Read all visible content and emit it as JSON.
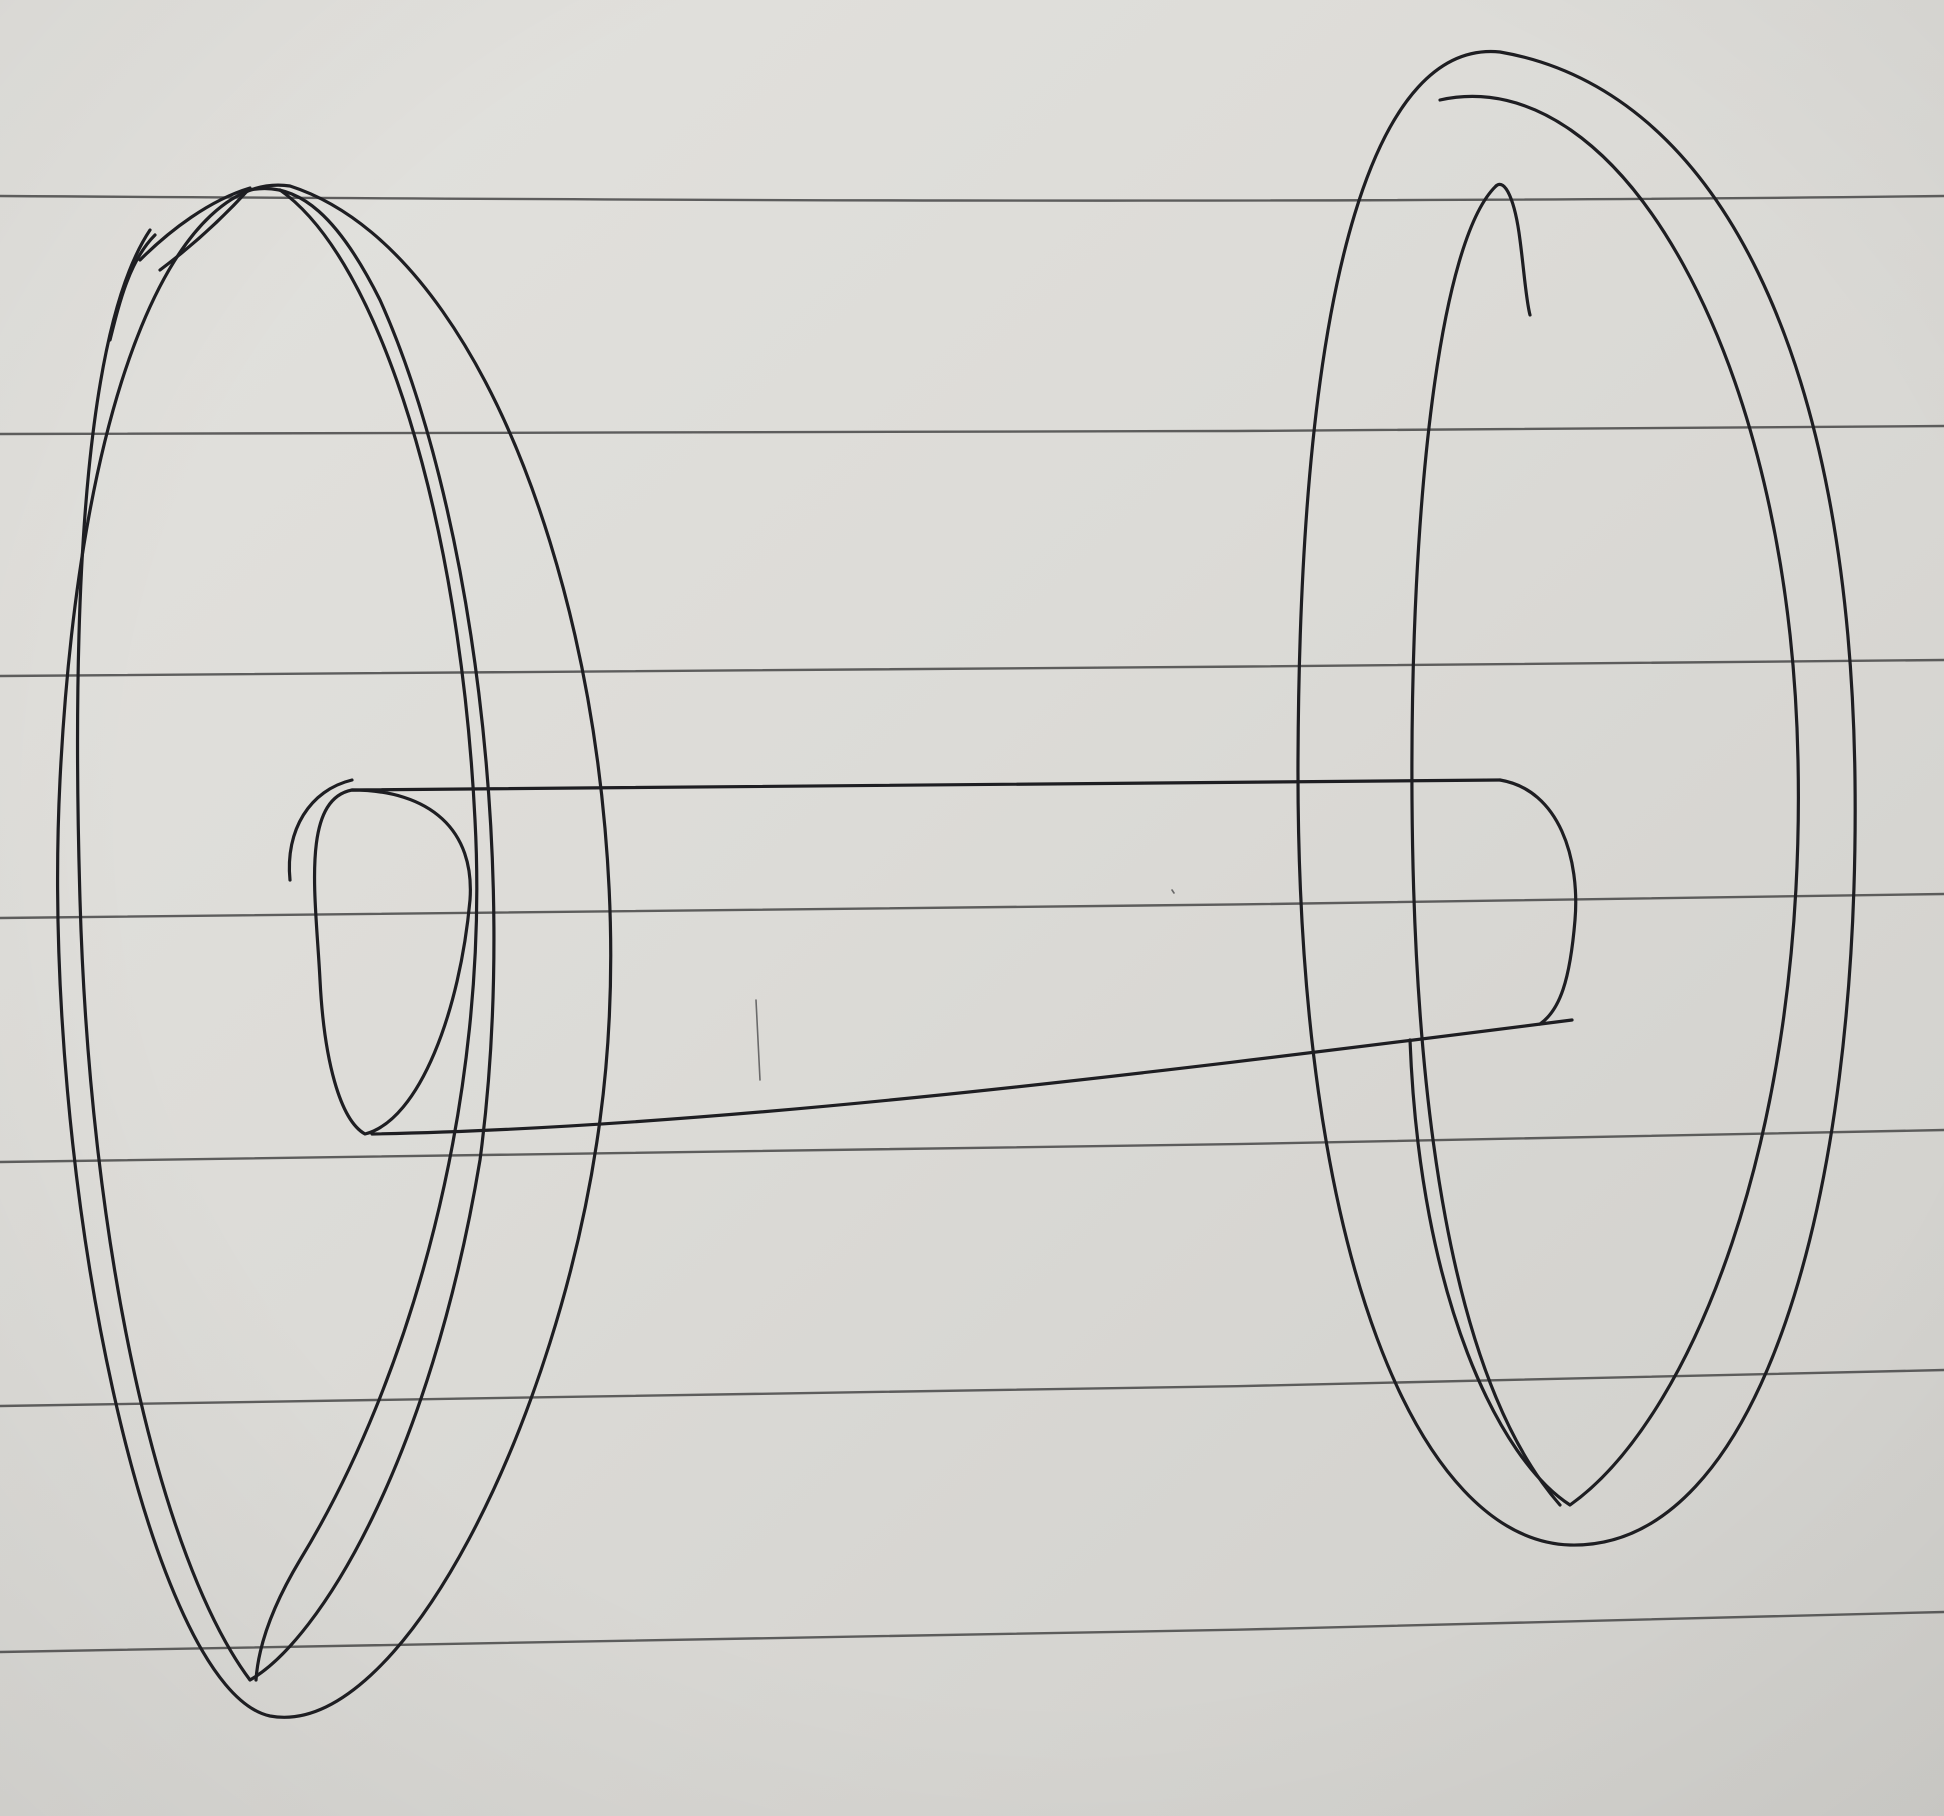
{
  "scene": {
    "subject": "pencil-sketch",
    "medium": "lined-notebook-paper",
    "paper_colors": {
      "light": "#e4e3df",
      "mid": "#d8d7d3",
      "shadow": "#cfcecb"
    },
    "ruling_color": "#3f3f3f",
    "pencil_color": "#1e1e22"
  }
}
